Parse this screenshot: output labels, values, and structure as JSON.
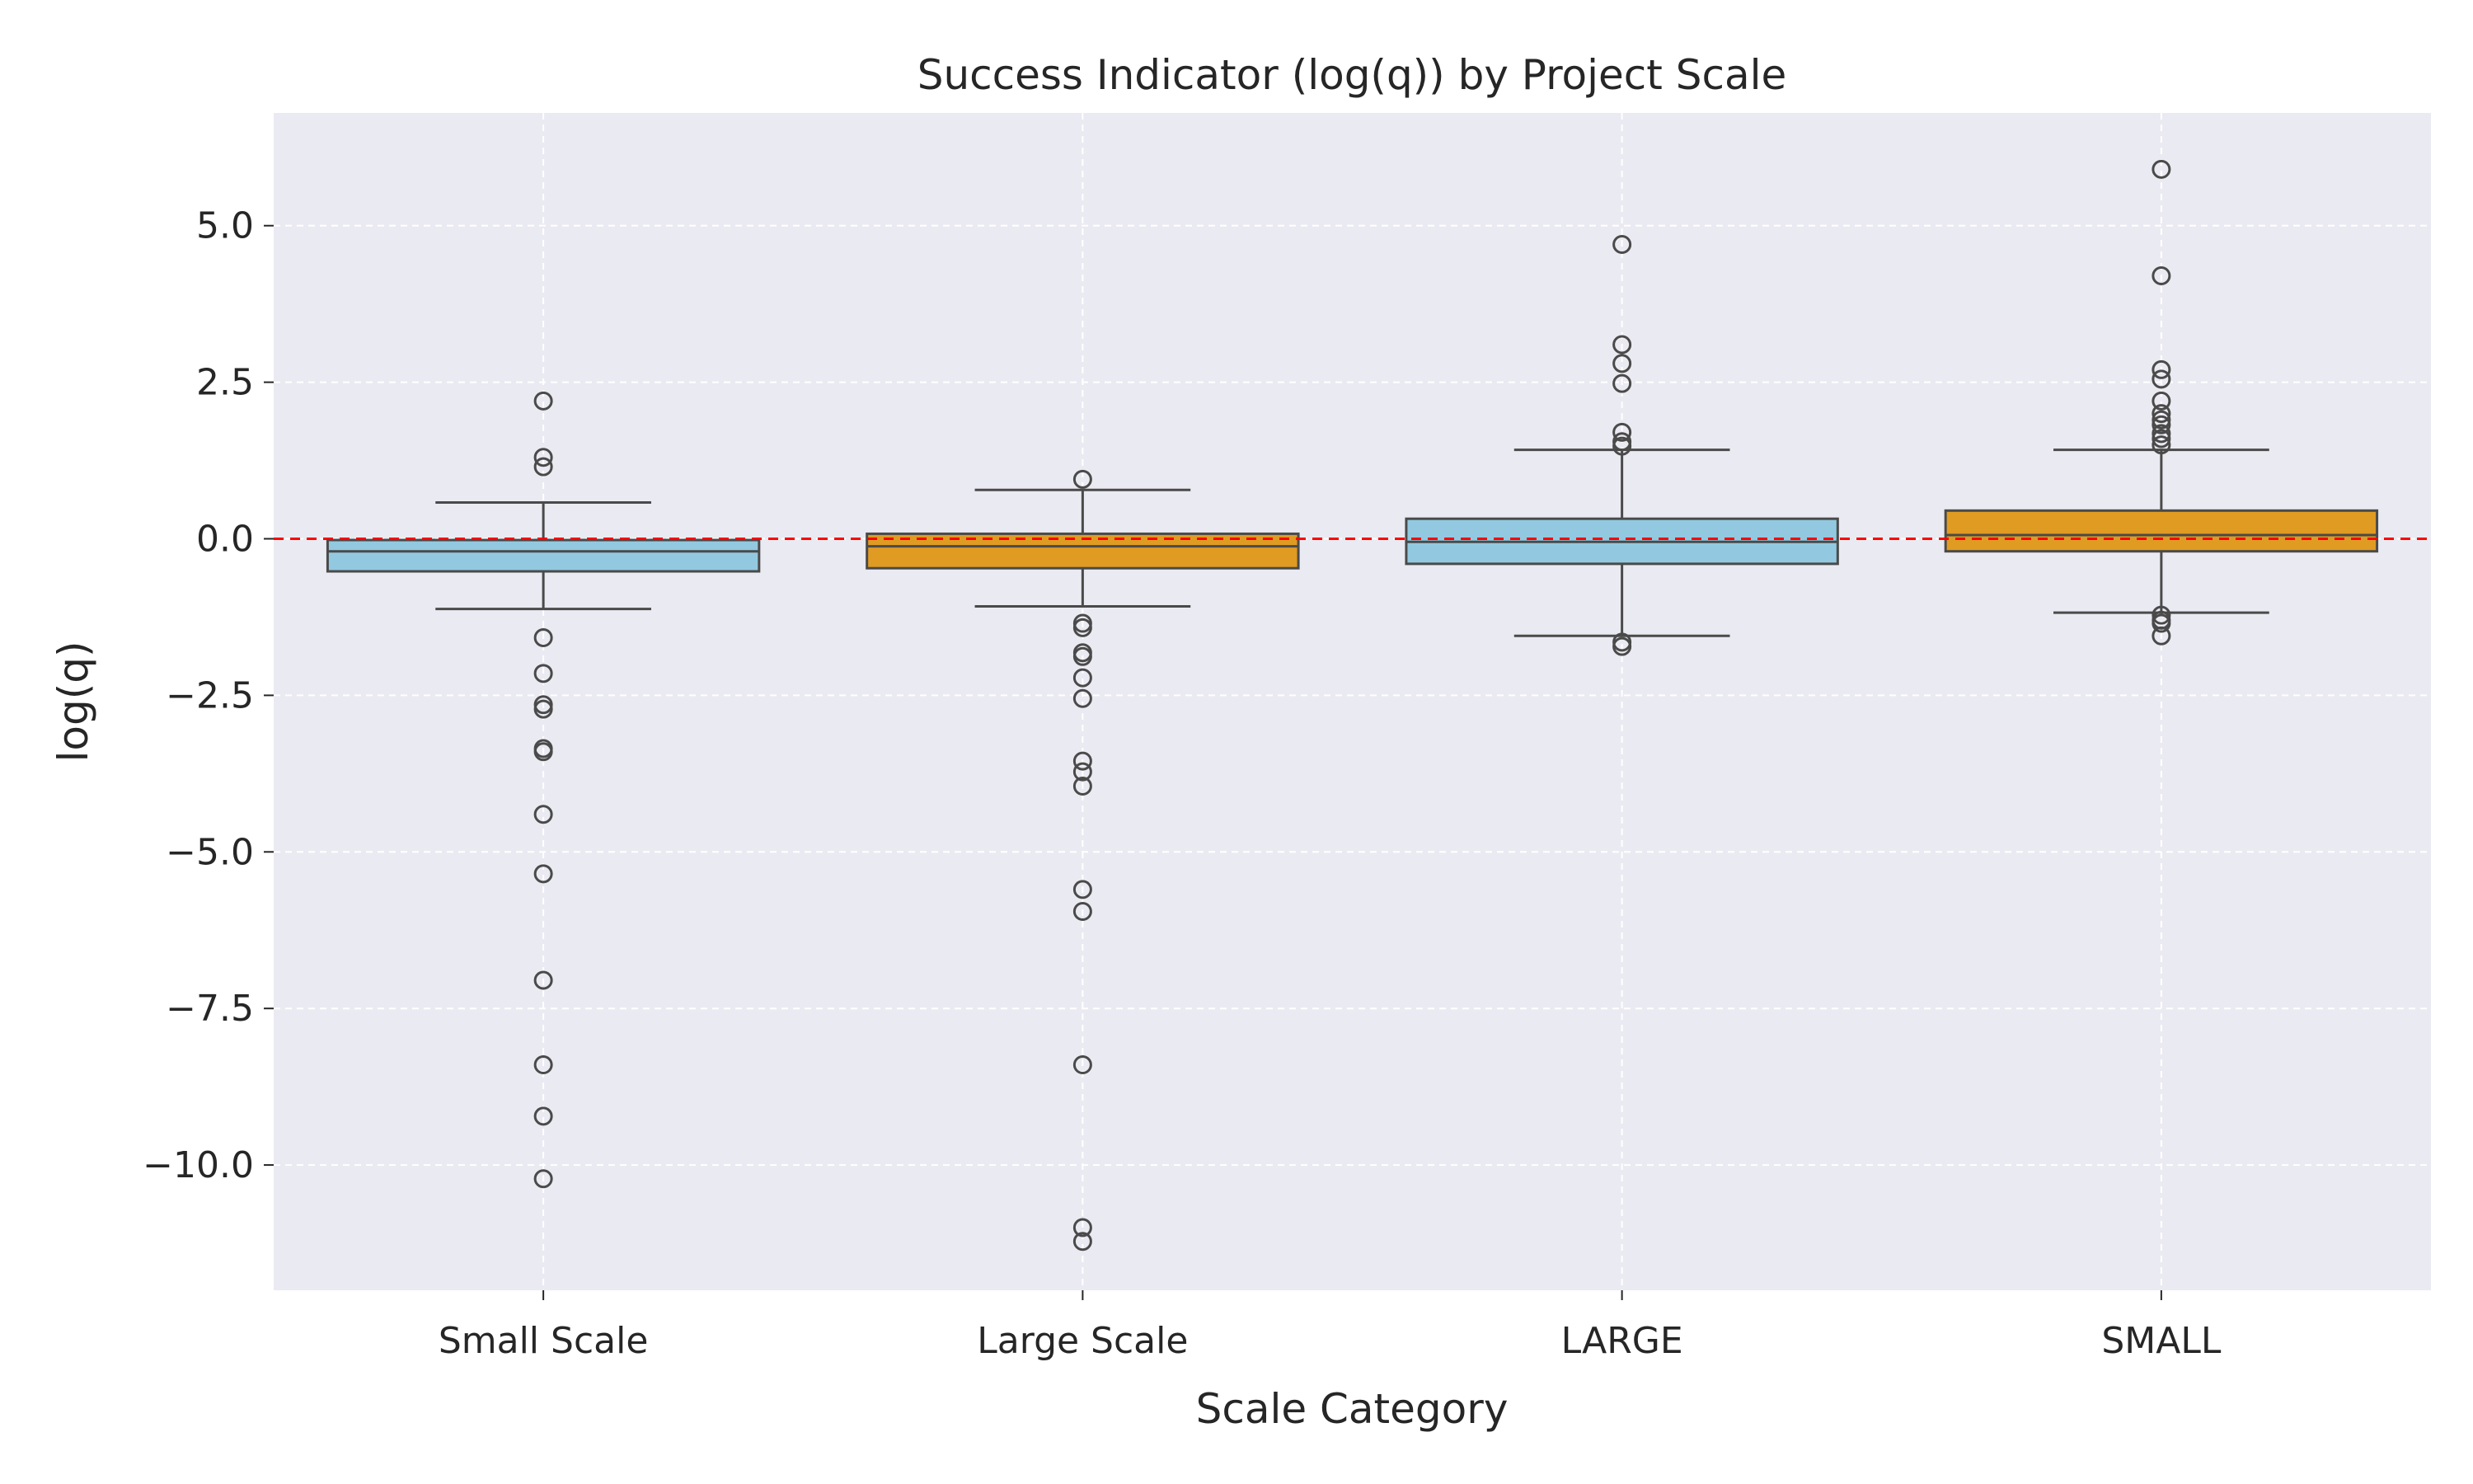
{
  "chart_data": {
    "type": "box",
    "title": "Success Indicator (log(q)) by Project Scale",
    "xlabel": "Scale Category",
    "ylabel": "log(q)",
    "ylim": [
      -12.0,
      6.8
    ],
    "yticks": [
      5.0,
      2.5,
      0.0,
      -2.5,
      -5.0,
      -7.5,
      -10.0
    ],
    "ytick_labels": [
      "5.0",
      "2.5",
      "0.0",
      "−2.5",
      "−5.0",
      "−7.5",
      "−10.0"
    ],
    "grid": true,
    "reference_line": {
      "y": 0.0,
      "color": "#ff0000",
      "style": "dashed"
    },
    "categories": [
      "Small Scale",
      "Large Scale",
      "LARGE",
      "SMALL"
    ],
    "boxes": [
      {
        "category": "Small Scale",
        "color": "#92c9e0",
        "q1": -0.52,
        "median": -0.2,
        "q3": -0.02,
        "whisker_low": -1.12,
        "whisker_high": 0.58,
        "outliers": [
          2.2,
          1.3,
          1.15,
          -1.58,
          -2.15,
          -2.65,
          -2.72,
          -3.35,
          -3.4,
          -4.4,
          -5.35,
          -7.05,
          -8.4,
          -9.22,
          -10.22
        ]
      },
      {
        "category": "Large Scale",
        "color": "#e09b22",
        "q1": -0.47,
        "median": -0.12,
        "q3": 0.08,
        "whisker_low": -1.08,
        "whisker_high": 0.78,
        "outliers": [
          0.95,
          -1.35,
          -1.42,
          -1.82,
          -1.88,
          -2.22,
          -2.55,
          -3.55,
          -3.72,
          -3.95,
          -5.6,
          -5.95,
          -8.4,
          -11.0,
          -11.22
        ]
      },
      {
        "category": "LARGE",
        "color": "#92c9e0",
        "q1": -0.4,
        "median": -0.05,
        "q3": 0.32,
        "whisker_low": -1.55,
        "whisker_high": 1.42,
        "outliers": [
          4.7,
          3.1,
          2.8,
          2.48,
          1.7,
          1.55,
          1.48,
          -1.65,
          -1.72
        ]
      },
      {
        "category": "SMALL",
        "color": "#e09b22",
        "q1": -0.2,
        "median": 0.06,
        "q3": 0.45,
        "whisker_low": -1.18,
        "whisker_high": 1.42,
        "outliers": [
          5.9,
          4.2,
          2.7,
          2.55,
          2.2,
          2.0,
          1.9,
          1.82,
          1.68,
          1.6,
          1.5,
          -1.22,
          -1.3,
          -1.35,
          -1.55
        ]
      }
    ]
  }
}
